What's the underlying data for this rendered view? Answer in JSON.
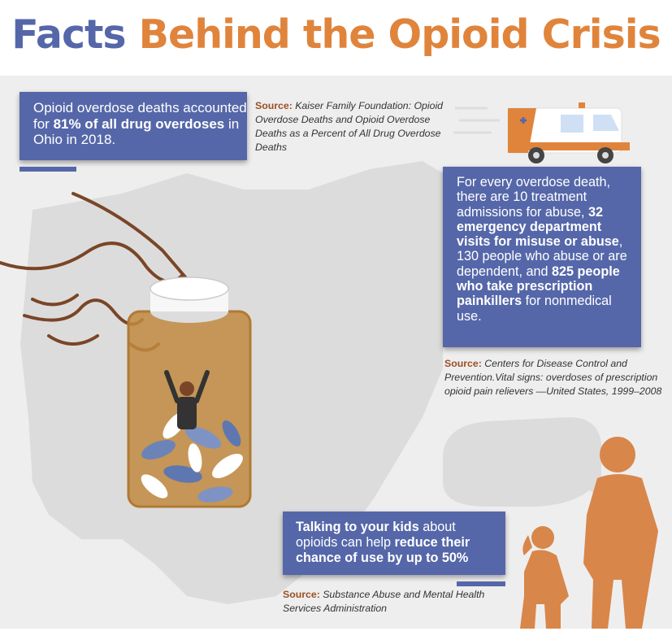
{
  "title": {
    "word1": "Facts",
    "word2": "Behind the Opioid Crisis"
  },
  "facts": [
    {
      "pre": "Opioid overdose deaths accounted for ",
      "bold": "81% of all drug overdoses",
      "post": " in Ohio in 2018.",
      "source_label": "Source:",
      "source_text": "Kaiser Family Foundation: Opioid Overdose Deaths and Opioid Overdose Deaths as a Percent of All Drug Overdose Deaths"
    },
    {
      "pre": "For every overdose death, there are 10 treatment admissions for abuse, ",
      "bold1": "32 emergency department visits for misuse or abuse",
      "mid": ", 130 people who abuse or are dependent, and ",
      "bold2": "825 people who take prescription painkillers",
      "post": " for nonmedical use.",
      "source_label": "Source:",
      "source_text": "Centers for Disease Control and Prevention.Vital signs: overdoses of prescription opioid pain relievers —United States, 1999–2008"
    },
    {
      "bold1": "Talking to your kids",
      "mid": " about opioids can help ",
      "bold2": "reduce their chance of use by up to 50%",
      "source_label": "Source:",
      "source_text": "Substance Abuse and Mental Health Services Administration"
    }
  ],
  "colors": {
    "blue": "#5567a9",
    "orange": "#e0843c",
    "panel": "#eeeeee",
    "map": "#dcdcdc",
    "source_label": "#9a4f23"
  },
  "icons": [
    "ohio-map",
    "hand-illustration",
    "pill-bottle",
    "trapped-person",
    "ambulance",
    "speech-bubble",
    "parent-child-silhouette"
  ]
}
